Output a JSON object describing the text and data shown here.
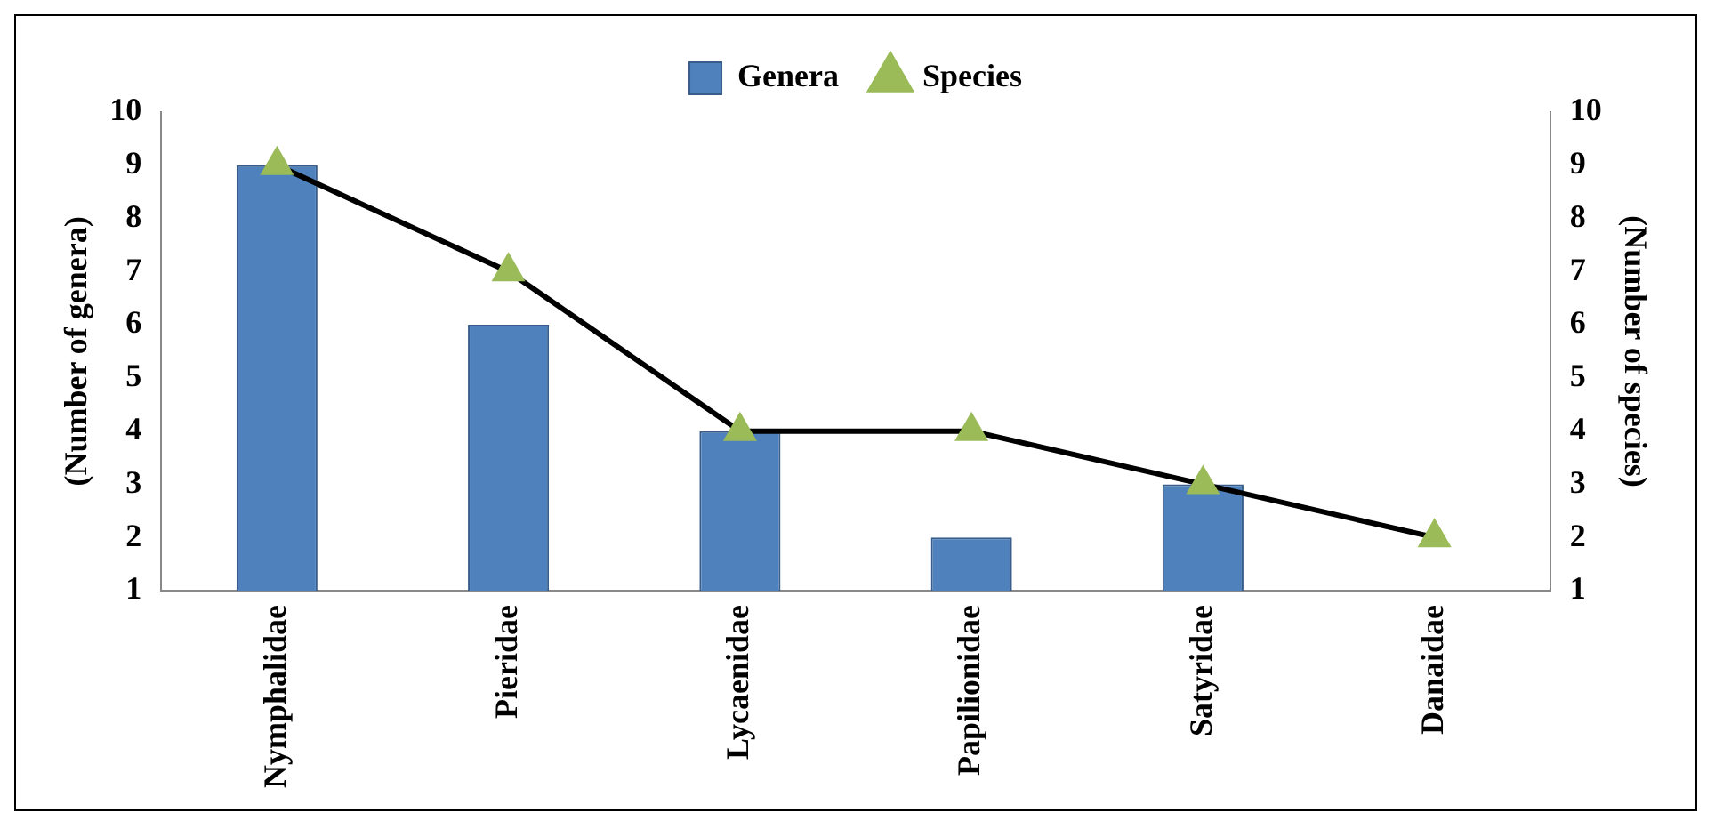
{
  "chart_data": {
    "type": "bar",
    "categories": [
      "Nymphalidae",
      "Pieridae",
      "Lycaenidae",
      "Papilionidae",
      "Satyridae",
      "Danaidae"
    ],
    "series": [
      {
        "name": "Genera",
        "color": "#4f81bd",
        "values": [
          9,
          6,
          4,
          2,
          3,
          1
        ]
      },
      {
        "name": "Species",
        "type": "line",
        "color": "#000000",
        "marker": "triangle",
        "values": [
          9,
          7,
          4,
          4,
          3,
          2
        ]
      }
    ],
    "ylabel": "(Number of genera)",
    "y2label": "(Number of species)",
    "ylim": [
      1,
      10
    ],
    "yticks": [
      1,
      2,
      3,
      4,
      5,
      6,
      7,
      8,
      9,
      10
    ],
    "y2lim": [
      1,
      10
    ],
    "y2ticks": [
      1,
      2,
      3,
      4,
      5,
      6,
      7,
      8,
      9,
      10
    ],
    "grid": false,
    "legend": "top"
  }
}
